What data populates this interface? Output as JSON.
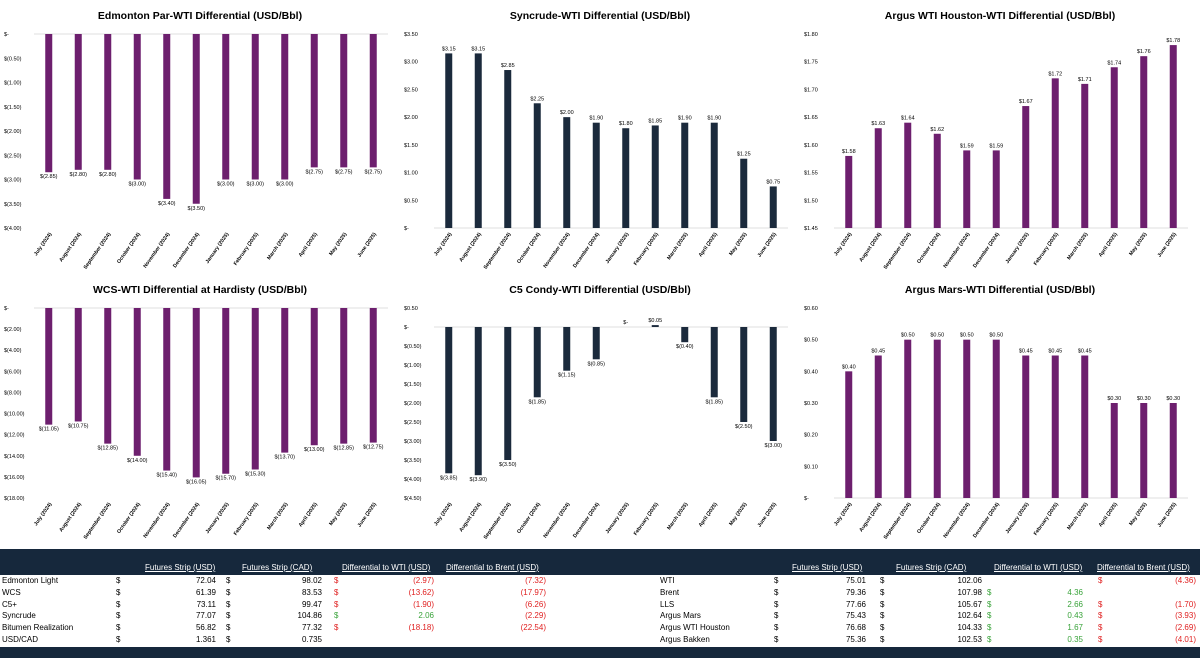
{
  "colors": {
    "purple": "#6d1f6e",
    "navy": "#1b2a3c",
    "header_bg": "#16283c",
    "negative": "#e02020",
    "positive": "#39a33a"
  },
  "chart_data": [
    {
      "id": "edmonton-par",
      "type": "bar",
      "color": "purple",
      "title": "Edmonton Par-WTI Differential (USD/Bbl)",
      "categories": [
        "July (2024)",
        "August (2024)",
        "September (2024)",
        "October (2024)",
        "November (2024)",
        "December (2024)",
        "January (2025)",
        "February (2025)",
        "March (2025)",
        "April (2025)",
        "May (2025)",
        "June (2025)"
      ],
      "values": [
        -2.85,
        -2.8,
        -2.8,
        -3.0,
        -3.4,
        -3.5,
        -3.0,
        -3.0,
        -3.0,
        -2.75,
        -2.75,
        -2.75
      ],
      "labels": [
        "$(2.85)",
        "$(2.80)",
        "$(2.80)",
        "$(3.00)",
        "$(3.40)",
        "$(3.50)",
        "$(3.00)",
        "$(3.00)",
        "$(3.00)",
        "$(2.75)",
        "$(2.75)",
        "$(2.75)"
      ],
      "ylim": [
        -4.0,
        0
      ],
      "yticks": [
        0,
        -0.5,
        -1.0,
        -1.5,
        -2.0,
        -2.5,
        -3.0,
        -3.5,
        -4.0
      ],
      "yticklabels": [
        "$-",
        "$(0.50)",
        "$(1.00)",
        "$(1.50)",
        "$(2.00)",
        "$(2.50)",
        "$(3.00)",
        "$(3.50)",
        "$(4.00)"
      ]
    },
    {
      "id": "syncrude",
      "type": "bar",
      "color": "navy",
      "title": "Syncrude-WTI Differential (USD/Bbl)",
      "categories": [
        "July (2024)",
        "August (2024)",
        "September (2024)",
        "October (2024)",
        "November (2024)",
        "December (2024)",
        "January (2025)",
        "February (2025)",
        "March (2025)",
        "April (2025)",
        "May (2025)",
        "June (2025)"
      ],
      "values": [
        3.15,
        3.15,
        2.85,
        2.25,
        2.0,
        1.9,
        1.8,
        1.85,
        1.9,
        1.9,
        1.25,
        0.75
      ],
      "labels": [
        "$3.15",
        "$3.15",
        "$2.85",
        "$2.25",
        "$2.00",
        "$1.90",
        "$1.80",
        "$1.85",
        "$1.90",
        "$1.90",
        "$1.25",
        "$0.75"
      ],
      "ylim": [
        0,
        3.5
      ],
      "yticks": [
        3.5,
        3.0,
        2.5,
        2.0,
        1.5,
        1.0,
        0.5,
        0
      ],
      "yticklabels": [
        "$3.50",
        "$3.00",
        "$2.50",
        "$2.00",
        "$1.50",
        "$1.00",
        "$0.50",
        "$-"
      ]
    },
    {
      "id": "argus-wti-houston",
      "type": "bar",
      "color": "purple",
      "title": "Argus WTI Houston-WTI Differential (USD/Bbl)",
      "categories": [
        "July (2024)",
        "August (2024)",
        "September (2024)",
        "October (2024)",
        "November (2024)",
        "December (2024)",
        "January (2025)",
        "February (2025)",
        "March (2025)",
        "April (2025)",
        "May (2025)",
        "June (2025)"
      ],
      "values": [
        1.58,
        1.63,
        1.64,
        1.62,
        1.59,
        1.59,
        1.67,
        1.72,
        1.71,
        1.74,
        1.76,
        1.78
      ],
      "labels": [
        "$1.58",
        "$1.63",
        "$1.64",
        "$1.62",
        "$1.59",
        "$1.59",
        "$1.67",
        "$1.72",
        "$1.71",
        "$1.74",
        "$1.76",
        "$1.78"
      ],
      "ylim": [
        1.45,
        1.8
      ],
      "yticks": [
        1.8,
        1.75,
        1.7,
        1.65,
        1.6,
        1.55,
        1.5,
        1.45
      ],
      "yticklabels": [
        "$1.80",
        "$1.75",
        "$1.70",
        "$1.65",
        "$1.60",
        "$1.55",
        "$1.50",
        "$1.45"
      ]
    },
    {
      "id": "wcs-hardisty",
      "type": "bar",
      "color": "purple",
      "title": "WCS-WTI Differential at Hardisty (USD/Bbl)",
      "categories": [
        "July (2024)",
        "August (2024)",
        "September (2024)",
        "October (2024)",
        "November (2024)",
        "December (2024)",
        "January (2025)",
        "February (2025)",
        "March (2025)",
        "April (2025)",
        "May (2025)",
        "June (2025)"
      ],
      "values": [
        -11.05,
        -10.75,
        -12.85,
        -14.0,
        -15.4,
        -16.05,
        -15.7,
        -15.3,
        -13.7,
        -13.0,
        -12.85,
        -12.75
      ],
      "labels": [
        "$(11.05)",
        "$(10.75)",
        "$(12.85)",
        "$(14.00)",
        "$(15.40)",
        "$(16.05)",
        "$(15.70)",
        "$(15.30)",
        "$(13.70)",
        "$(13.00)",
        "$(12.85)",
        "$(12.75)"
      ],
      "ylim": [
        -18,
        0
      ],
      "yticks": [
        0,
        -2,
        -4,
        -6,
        -8,
        -10,
        -12,
        -14,
        -16,
        -18
      ],
      "yticklabels": [
        "$-",
        "$(2.00)",
        "$(4.00)",
        "$(6.00)",
        "$(8.00)",
        "$(10.00)",
        "$(12.00)",
        "$(14.00)",
        "$(16.00)",
        "$(18.00)"
      ]
    },
    {
      "id": "c5-condy",
      "type": "bar",
      "color": "navy",
      "title": "C5 Condy-WTI Differential (USD/Bbl)",
      "categories": [
        "July (2024)",
        "August (2024)",
        "September (2024)",
        "October (2024)",
        "November (2024)",
        "December (2024)",
        "January (2025)",
        "February (2025)",
        "March (2025)",
        "April (2025)",
        "May (2025)",
        "June (2025)"
      ],
      "values": [
        -3.85,
        -3.9,
        -3.5,
        -1.85,
        -1.15,
        -0.85,
        0,
        0.05,
        -0.4,
        -1.85,
        -2.5,
        -3.0
      ],
      "labels": [
        "$(3.85)",
        "$(3.90)",
        "$(3.50)",
        "$(1.85)",
        "$(1.15)",
        "$(0.85)",
        "$-",
        "$0.05",
        "$(0.40)",
        "$(1.85)",
        "$(2.50)",
        "$(3.00)"
      ],
      "ylim": [
        -4.5,
        0.5
      ],
      "yticks": [
        0.5,
        0,
        -0.5,
        -1.0,
        -1.5,
        -2.0,
        -2.5,
        -3.0,
        -3.5,
        -4.0,
        -4.5
      ],
      "yticklabels": [
        "$0.50",
        "$-",
        "$(0.50)",
        "$(1.00)",
        "$(1.50)",
        "$(2.00)",
        "$(2.50)",
        "$(3.00)",
        "$(3.50)",
        "$(4.00)",
        "$(4.50)"
      ]
    },
    {
      "id": "argus-mars",
      "type": "bar",
      "color": "purple",
      "title": "Argus Mars-WTI Differential (USD/Bbl)",
      "categories": [
        "July (2024)",
        "August (2024)",
        "September (2024)",
        "October (2024)",
        "November (2024)",
        "December (2024)",
        "January (2025)",
        "February (2025)",
        "March (2025)",
        "April (2025)",
        "May (2025)",
        "June (2025)"
      ],
      "values": [
        0.4,
        0.45,
        0.5,
        0.5,
        0.5,
        0.5,
        0.45,
        0.45,
        0.45,
        0.3,
        0.3,
        0.3
      ],
      "labels": [
        "$0.40",
        "$0.45",
        "$0.50",
        "$0.50",
        "$0.50",
        "$0.50",
        "$0.45",
        "$0.45",
        "$0.45",
        "$0.30",
        "$0.30",
        "$0.30"
      ],
      "ylim": [
        0,
        0.6
      ],
      "yticks": [
        0.6,
        0.5,
        0.4,
        0.3,
        0.2,
        0.1,
        0
      ],
      "yticklabels": [
        "$0.60",
        "$0.50",
        "$0.40",
        "$0.30",
        "$0.20",
        "$0.10",
        "$-"
      ]
    }
  ],
  "table": {
    "left_headers": [
      "Futures Strip (USD)",
      "Futures Strip (CAD)",
      "Differential to WTI (USD)",
      "Differential to Brent (USD)"
    ],
    "right_headers": [
      "Futures Strip (USD)",
      "Futures Strip (CAD)",
      "Differential to WTI (USD)",
      "Differential to Brent (USD)"
    ],
    "left_rows": [
      {
        "name": "Edmonton Light",
        "usd": "72.04",
        "cad": "98.02",
        "wti": "(2.97)",
        "wti_sign": "neg",
        "brent": "(7.32)",
        "brent_sign": "neg"
      },
      {
        "name": "WCS",
        "usd": "61.39",
        "cad": "83.53",
        "wti": "(13.62)",
        "wti_sign": "neg",
        "brent": "(17.97)",
        "brent_sign": "neg"
      },
      {
        "name": "C5+",
        "usd": "73.11",
        "cad": "99.47",
        "wti": "(1.90)",
        "wti_sign": "neg",
        "brent": "(6.26)",
        "brent_sign": "neg"
      },
      {
        "name": "Syncrude",
        "usd": "77.07",
        "cad": "104.86",
        "wti": "2.06",
        "wti_sign": "pos",
        "brent": "(2.29)",
        "brent_sign": "neg"
      },
      {
        "name": "Bitumen Realization",
        "usd": "56.82",
        "cad": "77.32",
        "wti": "(18.18)",
        "wti_sign": "neg",
        "brent": "(22.54)",
        "brent_sign": "neg"
      },
      {
        "name": "USD/CAD",
        "usd": "1.361",
        "cad": "0.735",
        "wti": "",
        "wti_sign": "",
        "brent": "",
        "brent_sign": ""
      }
    ],
    "right_rows": [
      {
        "name": "WTI",
        "usd": "75.01",
        "cad": "102.06",
        "wti": "",
        "wti_sign": "",
        "brent": "(4.36)",
        "brent_sign": "neg"
      },
      {
        "name": "Brent",
        "usd": "79.36",
        "cad": "107.98",
        "wti": "4.36",
        "wti_sign": "pos",
        "brent": "",
        "brent_sign": ""
      },
      {
        "name": "LLS",
        "usd": "77.66",
        "cad": "105.67",
        "wti": "2.66",
        "wti_sign": "pos",
        "brent": "(1.70)",
        "brent_sign": "neg"
      },
      {
        "name": "Argus Mars",
        "usd": "75.43",
        "cad": "102.64",
        "wti": "0.43",
        "wti_sign": "pos",
        "brent": "(3.93)",
        "brent_sign": "neg"
      },
      {
        "name": "Argus WTI Houston",
        "usd": "76.68",
        "cad": "104.33",
        "wti": "1.67",
        "wti_sign": "pos",
        "brent": "(2.69)",
        "brent_sign": "neg"
      },
      {
        "name": "Argus Bakken",
        "usd": "75.36",
        "cad": "102.53",
        "wti": "0.35",
        "wti_sign": "pos",
        "brent": "(4.01)",
        "brent_sign": "neg"
      }
    ],
    "currency_symbol": "$"
  }
}
